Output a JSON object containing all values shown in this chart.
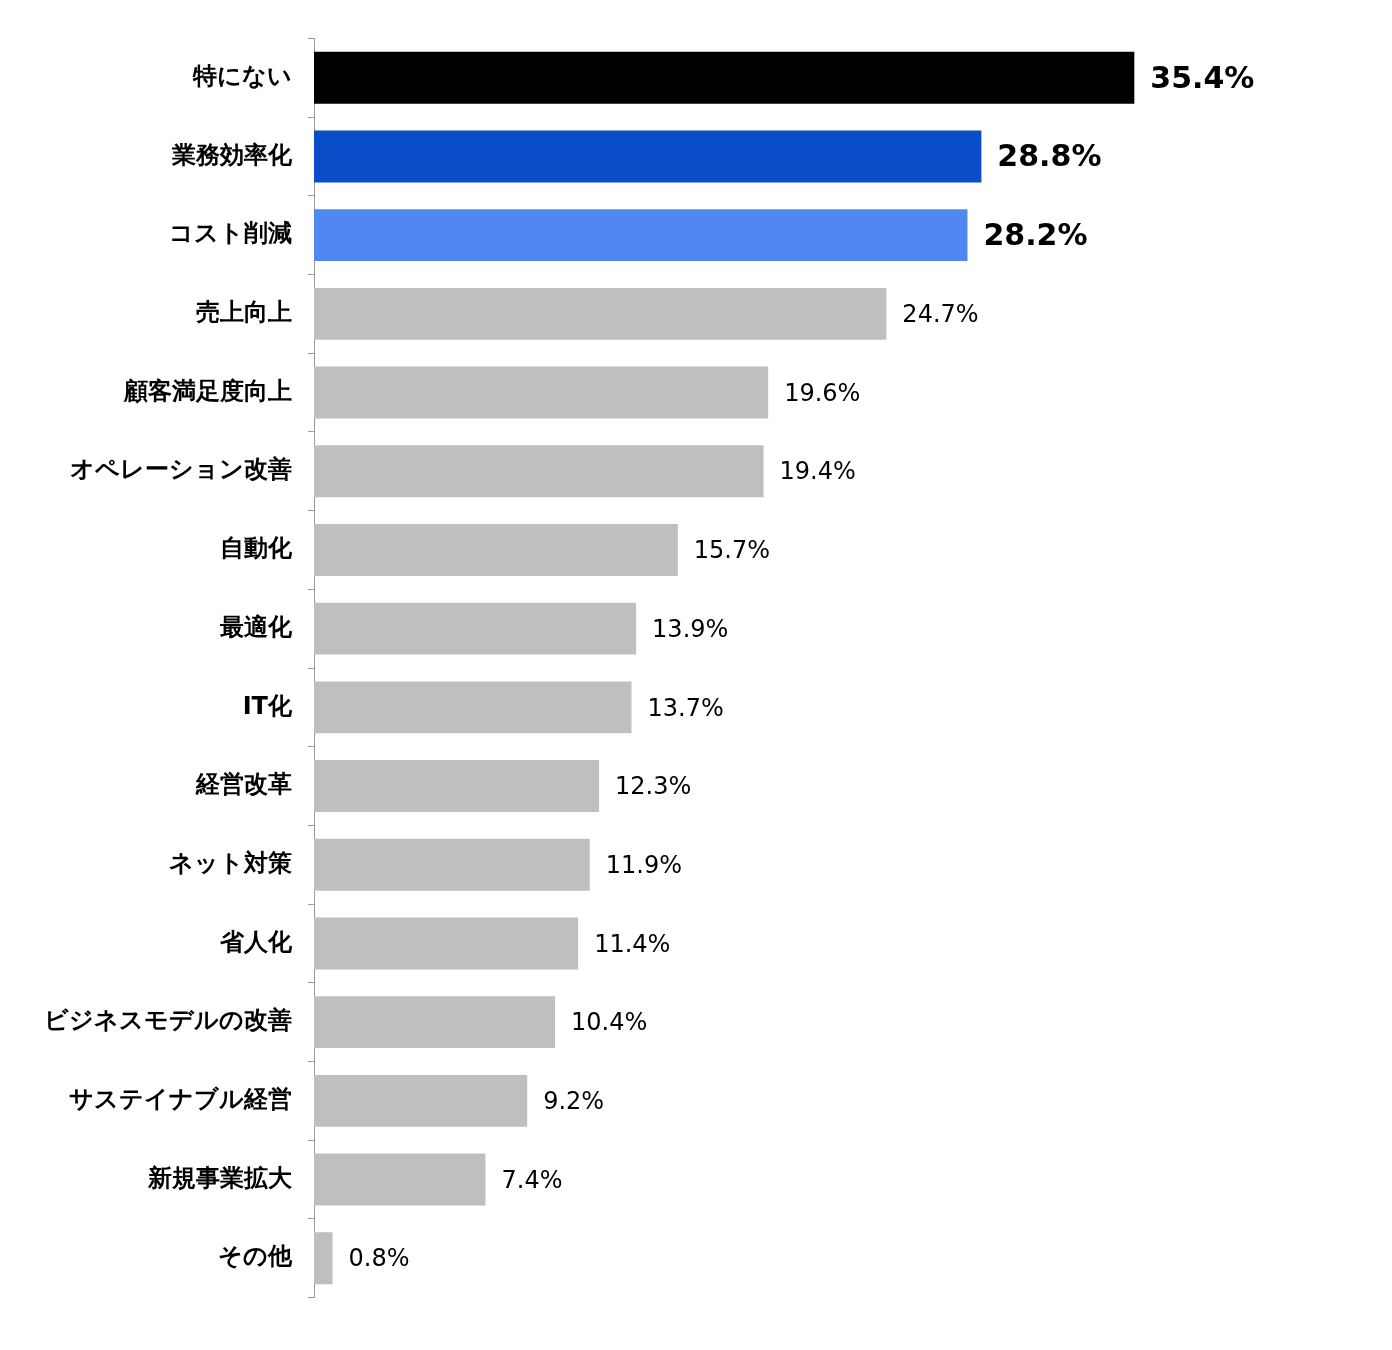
{
  "chart_data": {
    "type": "bar",
    "orientation": "horizontal",
    "categories": [
      "特にない",
      "業務効率化",
      "コスト削減",
      "売上向上",
      "顧客満足度向上",
      "オペレーション改善",
      "自動化",
      "最適化",
      "IT化",
      "経営改革",
      "ネット対策",
      "省人化",
      "ビジネスモデルの改善",
      "サステイナブル経営",
      "新規事業拡大",
      "その他"
    ],
    "values": [
      35.4,
      28.8,
      28.2,
      24.7,
      19.6,
      19.4,
      15.7,
      13.9,
      13.7,
      12.3,
      11.9,
      11.4,
      10.4,
      9.2,
      7.4,
      0.8
    ],
    "value_labels": [
      "35.4%",
      "28.8%",
      "28.2%",
      "24.7%",
      "19.6%",
      "19.4%",
      "15.7%",
      "13.9%",
      "13.7%",
      "12.3%",
      "11.9%",
      "11.4%",
      "10.4%",
      "9.2%",
      "7.4%",
      "0.8%"
    ],
    "colors": [
      "#000000",
      "#0b4cc8",
      "#5088f2",
      "#bfbfbf",
      "#bfbfbf",
      "#bfbfbf",
      "#bfbfbf",
      "#bfbfbf",
      "#bfbfbf",
      "#bfbfbf",
      "#bfbfbf",
      "#bfbfbf",
      "#bfbfbf",
      "#bfbfbf",
      "#bfbfbf",
      "#bfbfbf"
    ],
    "grid": false,
    "legend": false
  }
}
